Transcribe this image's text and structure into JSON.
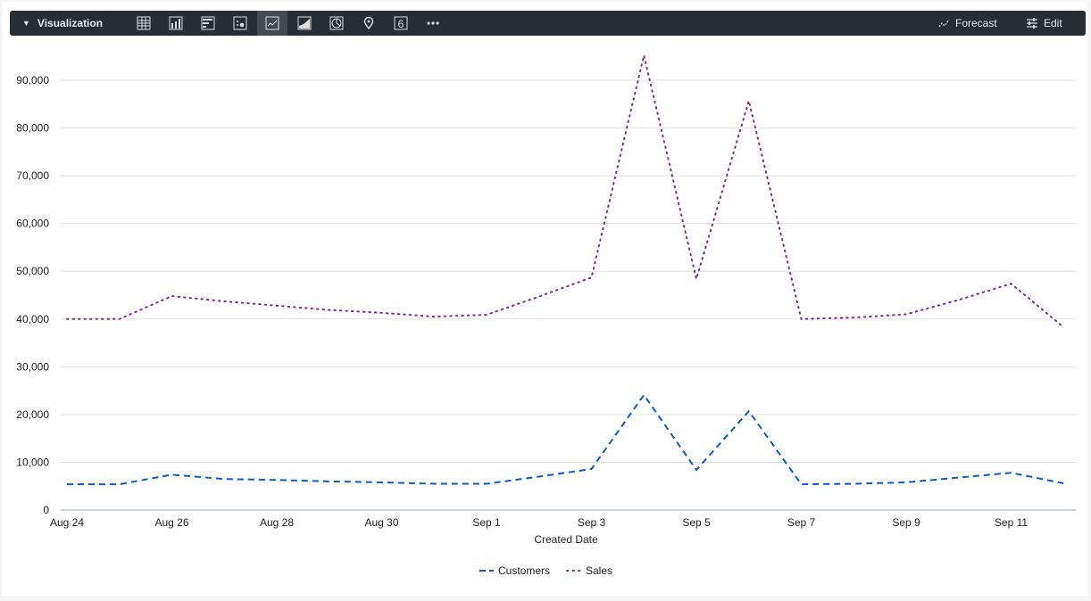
{
  "toolbar": {
    "title": "Visualization",
    "forecast_label": "Forecast",
    "edit_label": "Edit",
    "viz_types": [
      {
        "icon": "table-icon"
      },
      {
        "icon": "column-chart-icon"
      },
      {
        "icon": "bar-chart-icon"
      },
      {
        "icon": "scatter-icon"
      },
      {
        "icon": "line-chart-icon",
        "active": true
      },
      {
        "icon": "area-chart-icon"
      },
      {
        "icon": "pie-chart-icon"
      },
      {
        "icon": "map-pin-icon"
      },
      {
        "icon": "single-value-icon",
        "label": "6"
      },
      {
        "icon": "more-icon"
      }
    ]
  },
  "chart_data": {
    "type": "line",
    "xlabel": "Created Date",
    "ylabel": "",
    "x": [
      "Aug 24",
      "Aug 25",
      "Aug 26",
      "Aug 27",
      "Aug 28",
      "Aug 29",
      "Aug 30",
      "Aug 31",
      "Sep 1",
      "Sep 2",
      "Sep 3",
      "Sep 4",
      "Sep 5",
      "Sep 6",
      "Sep 7",
      "Sep 8",
      "Sep 9",
      "Sep 10",
      "Sep 11",
      "Sep 12"
    ],
    "x_ticks": [
      "Aug 24",
      "Aug 26",
      "Aug 28",
      "Aug 30",
      "Sep 1",
      "Sep 3",
      "Sep 5",
      "Sep 7",
      "Sep 9",
      "Sep 11"
    ],
    "y_ticks": [
      "0",
      "10,000",
      "20,000",
      "30,000",
      "40,000",
      "50,000",
      "60,000",
      "70,000",
      "80,000",
      "90,000"
    ],
    "ylim": [
      0,
      97000
    ],
    "grid": true,
    "legend": "bottom",
    "series": [
      {
        "name": "Customers",
        "color": "#0b5cc7",
        "style": "dashed",
        "values": [
          5400,
          5400,
          7400,
          6500,
          6300,
          6000,
          5800,
          5500,
          5500,
          7000,
          8600,
          24100,
          8400,
          20700,
          5400,
          5500,
          5800,
          6800,
          7800,
          5600
        ]
      },
      {
        "name": "Sales",
        "color": "#7b2a9e",
        "style": "dotted",
        "values": [
          40000,
          40000,
          44800,
          43700,
          42800,
          41900,
          41300,
          40500,
          40900,
          44700,
          48700,
          95200,
          48400,
          85700,
          40000,
          40300,
          41000,
          44000,
          47400,
          38300
        ]
      }
    ]
  }
}
